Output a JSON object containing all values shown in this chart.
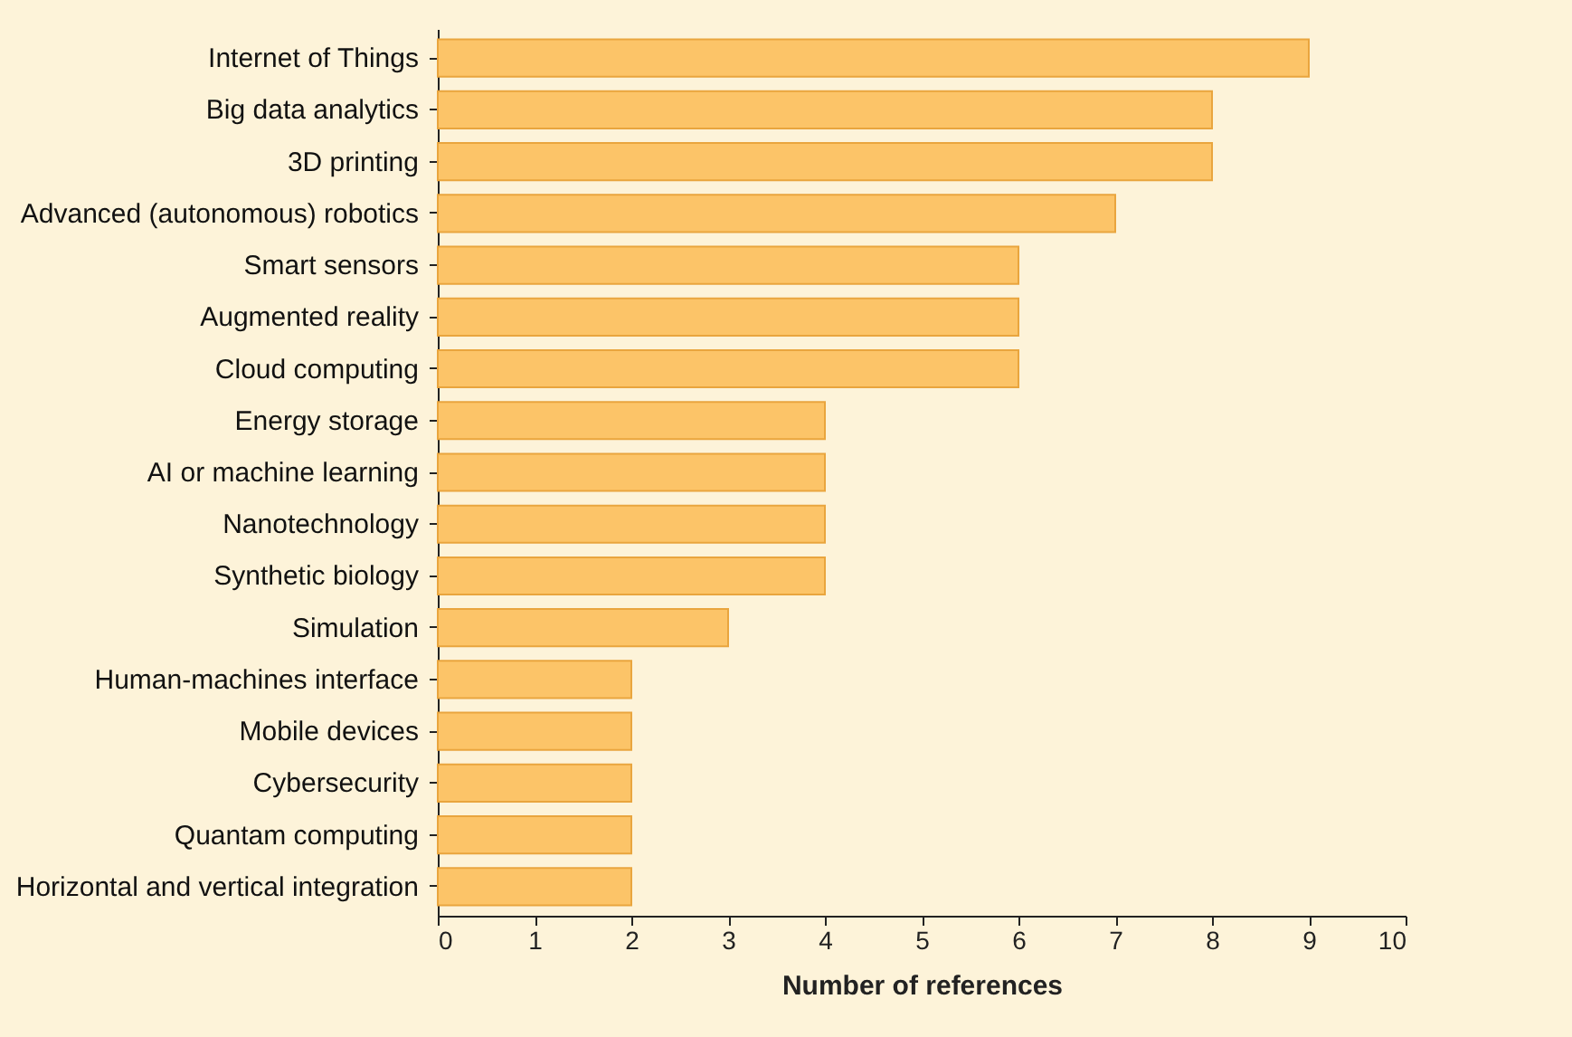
{
  "chart_data": {
    "type": "bar",
    "orientation": "horizontal",
    "xlabel": "Number of references",
    "categories": [
      "Internet of Things",
      "Big data analytics",
      "3D printing",
      "Advanced (autonomous) robotics",
      "Smart sensors",
      "Augmented reality",
      "Cloud computing",
      "Energy storage",
      "AI or machine learning",
      "Nanotechnology",
      "Synthetic biology",
      "Simulation",
      "Human-machines interface",
      "Mobile devices",
      "Cybersecurity",
      "Quantam computing",
      "Horizontal and vertical integration"
    ],
    "values": [
      9,
      8,
      8,
      7,
      6,
      6,
      6,
      4,
      4,
      4,
      4,
      3,
      2,
      2,
      2,
      2,
      2
    ],
    "color": "#fcc468",
    "xlim": [
      0,
      10
    ],
    "xticks": [
      0,
      1,
      2,
      3,
      4,
      5,
      6,
      7,
      8,
      9,
      10
    ],
    "grid": false
  }
}
